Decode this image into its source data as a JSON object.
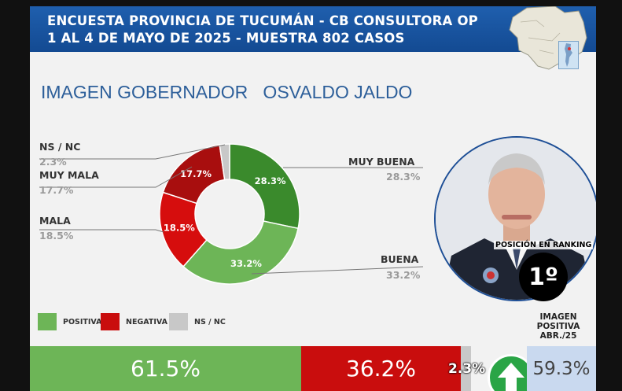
{
  "header": {
    "line1": "ENCUESTA PROVINCIA DE TUCUMÁN - CB CONSULTORA OP",
    "line2": "1 AL 4 DE MAYO DE 2025 - MUESTRA 802 CASOS"
  },
  "title": "IMAGEN GOBERNADOR   OSVALDO JALDO",
  "chart_data": [
    {
      "type": "pie",
      "title": "IMAGEN GOBERNADOR   OSVALDO JALDO",
      "donut": true,
      "slices": [
        {
          "label": "MUY BUENA",
          "value": 28.3,
          "display": "28.3%",
          "color": "#3a8a2c"
        },
        {
          "label": "BUENA",
          "value": 33.2,
          "display": "33.2%",
          "color": "#6db557"
        },
        {
          "label": "MALA",
          "value": 18.5,
          "display": "18.5%",
          "color": "#d60d0d"
        },
        {
          "label": "MUY MALA",
          "value": 17.7,
          "display": "17.7%",
          "color": "#a80e0e"
        },
        {
          "label": "NS / NC",
          "value": 2.3,
          "display": "2.3%",
          "color": "#c8c8c8"
        }
      ]
    },
    {
      "type": "bar",
      "stacked": true,
      "orientation": "horizontal",
      "categories": [
        "POSITIVA",
        "NEGATIVA",
        "NS / NC"
      ],
      "values": [
        61.5,
        36.2,
        2.3
      ],
      "labels": [
        "61.5%",
        "36.2%",
        "2.3%"
      ],
      "colors": [
        "#6db557",
        "#c90d0d",
        "#c8c8c8"
      ]
    }
  ],
  "legend": [
    {
      "label": "POSITIVA",
      "color": "#6db557"
    },
    {
      "label": "NEGATIVA",
      "color": "#c90d0d"
    },
    {
      "label": "NS / NC",
      "color": "#c8c8c8"
    }
  ],
  "ranking": {
    "label": "POSICIÓN EN RANKING",
    "position": "1º"
  },
  "imagen_positiva": {
    "label": "IMAGEN POSITIVA ABR./25",
    "value": "59.3%"
  }
}
